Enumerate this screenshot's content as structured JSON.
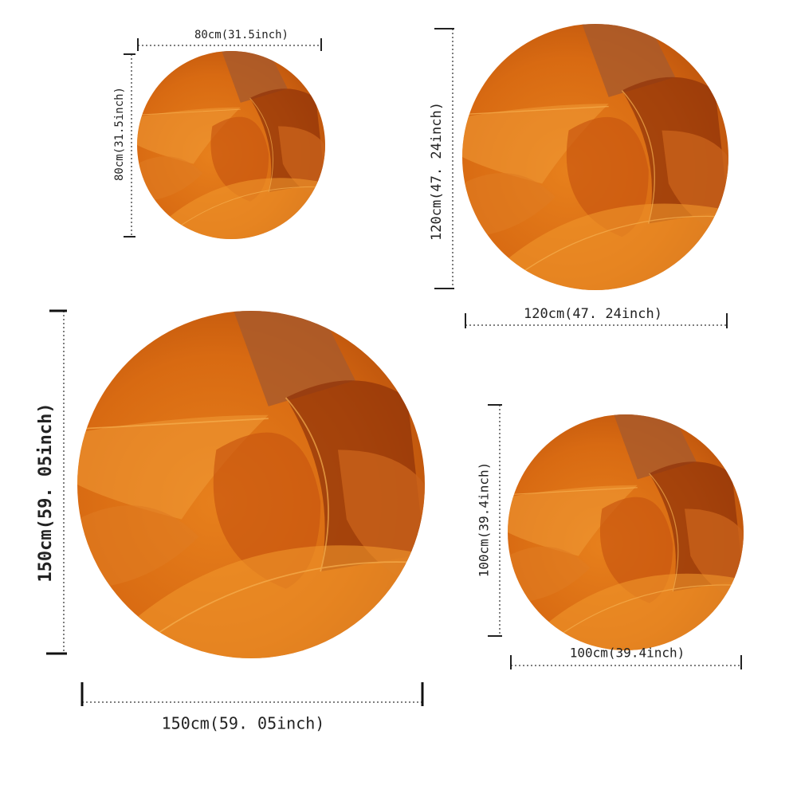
{
  "rugs": [
    {
      "width_label": "80cm(31.5inch)",
      "height_label": "80cm(31.5inch)"
    },
    {
      "width_label": "120cm(47. 24inch)",
      "height_label": "120cm(47. 24inch)"
    },
    {
      "width_label": "150cm(59. 05inch)",
      "height_label": "150cm(59. 05inch)"
    },
    {
      "width_label": "100cm(39.4inch)",
      "height_label": "100cm(39.4inch)"
    }
  ]
}
